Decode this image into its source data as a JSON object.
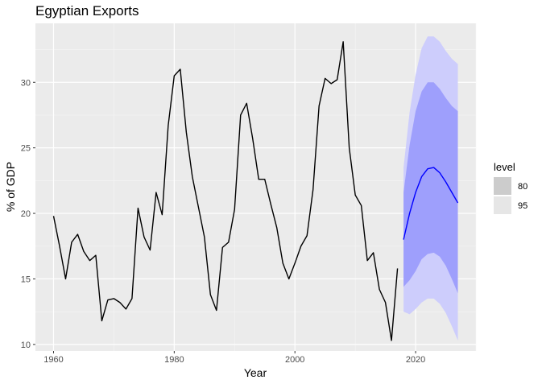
{
  "chart_data": {
    "type": "line",
    "title": "Egyptian Exports",
    "xlabel": "Year",
    "ylabel": "% of GDP",
    "xlim": [
      1957,
      2030
    ],
    "ylim": [
      9.5,
      34.5
    ],
    "x_ticks": [
      1960,
      1980,
      2000,
      2020
    ],
    "y_ticks": [
      10,
      15,
      20,
      25,
      30
    ],
    "grid": true,
    "background": "#ebebeb",
    "series": [
      {
        "color": "#000000",
        "x": [
          1960,
          1961,
          1962,
          1963,
          1964,
          1965,
          1966,
          1967,
          1968,
          1969,
          1970,
          1971,
          1972,
          1973,
          1974,
          1975,
          1976,
          1977,
          1978,
          1979,
          1980,
          1981,
          1982,
          1983,
          1984,
          1985,
          1986,
          1987,
          1988,
          1989,
          1990,
          1991,
          1992,
          1993,
          1994,
          1995,
          1996,
          1997,
          1998,
          1999,
          2000,
          2001,
          2002,
          2003,
          2004,
          2005,
          2006,
          2007,
          2008,
          2009,
          2010,
          2011,
          2012,
          2013,
          2014,
          2015,
          2016,
          2017
        ],
        "values": [
          19.8,
          17.5,
          15.0,
          17.8,
          18.4,
          17.1,
          16.4,
          16.8,
          11.8,
          13.4,
          13.5,
          13.2,
          12.7,
          13.5,
          20.4,
          18.2,
          17.2,
          21.6,
          19.9,
          26.7,
          30.5,
          31.0,
          26.2,
          22.8,
          20.5,
          18.2,
          13.8,
          12.6,
          17.4,
          17.8,
          20.3,
          27.5,
          28.4,
          25.7,
          22.6,
          22.6,
          20.7,
          18.9,
          16.2,
          15.0,
          16.2,
          17.5,
          18.3,
          21.8,
          28.2,
          30.3,
          29.9,
          30.2,
          33.1,
          25.0,
          21.4,
          20.6,
          16.4,
          17.0,
          14.2,
          13.2,
          10.3,
          15.8
        ]
      },
      {
        "color": "#0000ff",
        "x": [
          2018,
          2019,
          2020,
          2021,
          2022,
          2023,
          2024,
          2025,
          2026,
          2027
        ],
        "values": [
          18.0,
          20.0,
          21.6,
          22.8,
          23.4,
          23.5,
          23.1,
          22.4,
          21.6,
          20.8
        ]
      }
    ],
    "intervals": [
      {
        "level": "95",
        "color": "#cdcdfc",
        "x": [
          2018,
          2019,
          2020,
          2021,
          2022,
          2023,
          2024,
          2025,
          2026,
          2027
        ],
        "lower": [
          12.5,
          12.3,
          12.7,
          13.2,
          13.5,
          13.5,
          13.1,
          12.4,
          11.4,
          10.3
        ],
        "upper": [
          23.5,
          27.7,
          30.6,
          32.6,
          33.5,
          33.5,
          33.1,
          32.4,
          31.8,
          31.4
        ]
      },
      {
        "level": "80",
        "color": "#9e9ffc",
        "x": [
          2018,
          2019,
          2020,
          2021,
          2022,
          2023,
          2024,
          2025,
          2026,
          2027
        ],
        "lower": [
          14.4,
          14.9,
          15.6,
          16.5,
          16.9,
          17.0,
          16.7,
          16.0,
          15.0,
          13.9
        ],
        "upper": [
          21.6,
          25.2,
          27.8,
          29.3,
          30.0,
          30.0,
          29.5,
          28.8,
          28.2,
          27.8
        ]
      }
    ],
    "legend": {
      "title": "level",
      "placement": "right",
      "entries": [
        {
          "label": "80",
          "color": "#cccccc"
        },
        {
          "label": "95",
          "color": "#e6e6e6"
        }
      ]
    }
  }
}
